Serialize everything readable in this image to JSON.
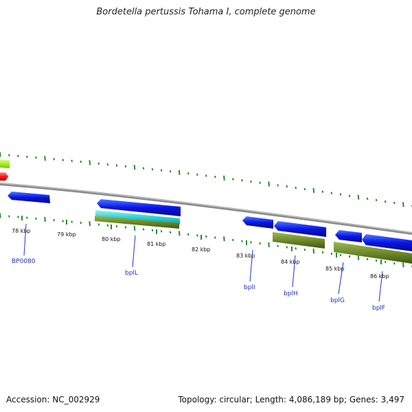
{
  "title": "Bordetella pertussis Tohama I, complete genome",
  "accession": "Accession: NC_002929",
  "summary": "Topology: circular; Length: 4,086,189 bp; Genes: 3,497",
  "colors": {
    "backbone": "#8a8a8a",
    "cds": "#0a14e6",
    "cds_light": "#3aa0ff",
    "cyan": "#2ad4d4",
    "olive": "#6e8a2a",
    "lime": "#aaf02a",
    "red": "#ff1a1a",
    "tick": "#2a8a2a",
    "label": "#1f2fbf"
  },
  "kbp_labels": [
    "78 kbp",
    "79 kbp",
    "80 kbp",
    "81 kbp",
    "82 kbp",
    "83 kbp",
    "84 kbp",
    "85 kbp",
    "86 kbp"
  ],
  "gene_labels": [
    "BP0080",
    "bplL",
    "bplI",
    "bplH",
    "bplG",
    "bplF"
  ]
}
